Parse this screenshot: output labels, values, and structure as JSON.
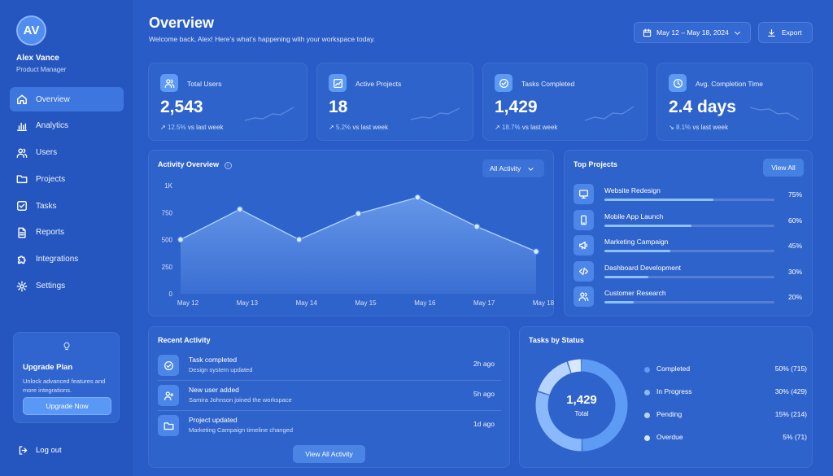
{
  "user": {
    "initials": "AV",
    "name": "Alex Vance",
    "role": "Product Manager"
  },
  "nav": [
    {
      "label": "Overview",
      "icon": "home-icon",
      "active": true
    },
    {
      "label": "Analytics",
      "icon": "bar-chart-icon"
    },
    {
      "label": "Users",
      "icon": "users-icon"
    },
    {
      "label": "Projects",
      "icon": "folder-icon"
    },
    {
      "label": "Tasks",
      "icon": "checkbox-icon"
    },
    {
      "label": "Reports",
      "icon": "document-icon"
    },
    {
      "label": "Integrations",
      "icon": "puzzle-icon"
    },
    {
      "label": "Settings",
      "icon": "gear-icon"
    }
  ],
  "upgrade": {
    "title": "Upgrade Plan",
    "text": "Unlock advanced features and more integrations.",
    "button": "Upgrade Now"
  },
  "logout": "Log out",
  "header": {
    "title": "Overview",
    "subtitle": "Welcome back, Alex! Here’s what’s happening with your workspace today.",
    "date_range": "May 12 – May 18, 2024",
    "export": "Export"
  },
  "stats": [
    {
      "label": "Total Users",
      "value": "2,543",
      "change": "12.5%",
      "suffix": "vs last week",
      "trend": "up",
      "icon": "users-icon"
    },
    {
      "label": "Active Projects",
      "value": "18",
      "change": "5.2%",
      "suffix": "vs last week",
      "trend": "up",
      "icon": "trend-chart-icon"
    },
    {
      "label": "Tasks Completed",
      "value": "1,429",
      "change": "18.7%",
      "suffix": "vs last week",
      "trend": "up",
      "icon": "check-circle-icon"
    },
    {
      "label": "Avg. Completion Time",
      "value": "2.4 days",
      "change": "8.1%",
      "suffix": "vs last week",
      "trend": "down",
      "icon": "clock-icon"
    }
  ],
  "activity": {
    "title": "Activity Overview",
    "filter": "All Activity"
  },
  "chart_data": {
    "type": "area",
    "title": "Activity Overview",
    "categories": [
      "May 12",
      "May 13",
      "May 14",
      "May 15",
      "May 16",
      "May 17",
      "May 18"
    ],
    "values": [
      500,
      780,
      500,
      740,
      890,
      620,
      390
    ],
    "yticks": [
      "0",
      "250",
      "500",
      "750",
      "1K"
    ],
    "ylim": [
      0,
      1000
    ],
    "grid": false,
    "color": "#8fc0ff"
  },
  "top_projects": {
    "title": "Top Projects",
    "view_all": "View All",
    "items": [
      {
        "name": "Website Redesign",
        "percent": "75%",
        "progress": 0.75,
        "icon": "monitor-icon"
      },
      {
        "name": "Mobile App Launch",
        "percent": "60%",
        "progress": 0.6,
        "icon": "phone-icon"
      },
      {
        "name": "Marketing Campaign",
        "percent": "45%",
        "progress": 0.45,
        "icon": "megaphone-icon"
      },
      {
        "name": "Dashboard Development",
        "percent": "30%",
        "progress": 0.3,
        "icon": "code-icon"
      },
      {
        "name": "Customer Research",
        "percent": "20%",
        "progress": 0.2,
        "icon": "users-icon"
      }
    ]
  },
  "recent": {
    "title": "Recent Activity",
    "button": "View All Activity",
    "items": [
      {
        "title": "Task completed",
        "sub": "Design system updated",
        "time": "2h ago",
        "icon": "check-circle-icon"
      },
      {
        "title": "New user added",
        "sub": "Samira Johnson joined the workspace",
        "time": "5h ago",
        "icon": "user-plus-icon"
      },
      {
        "title": "Project updated",
        "sub": "Marketing Campaign timeline changed",
        "time": "1d ago",
        "icon": "folder-icon"
      }
    ]
  },
  "tasks_status": {
    "title": "Tasks by Status",
    "total_value": "1,429",
    "total_label": "Total",
    "items": [
      {
        "name": "Completed",
        "value": "50% (715)",
        "share": 50,
        "color": "#5e9bf4"
      },
      {
        "name": "In Progress",
        "value": "30% (429)",
        "share": 30,
        "color": "#89b9fa"
      },
      {
        "name": "Pending",
        "value": "15% (214)",
        "share": 15,
        "color": "#b6d4fd"
      },
      {
        "name": "Overdue",
        "value": "5% (71)",
        "share": 5,
        "color": "#d9e8fe"
      }
    ]
  }
}
